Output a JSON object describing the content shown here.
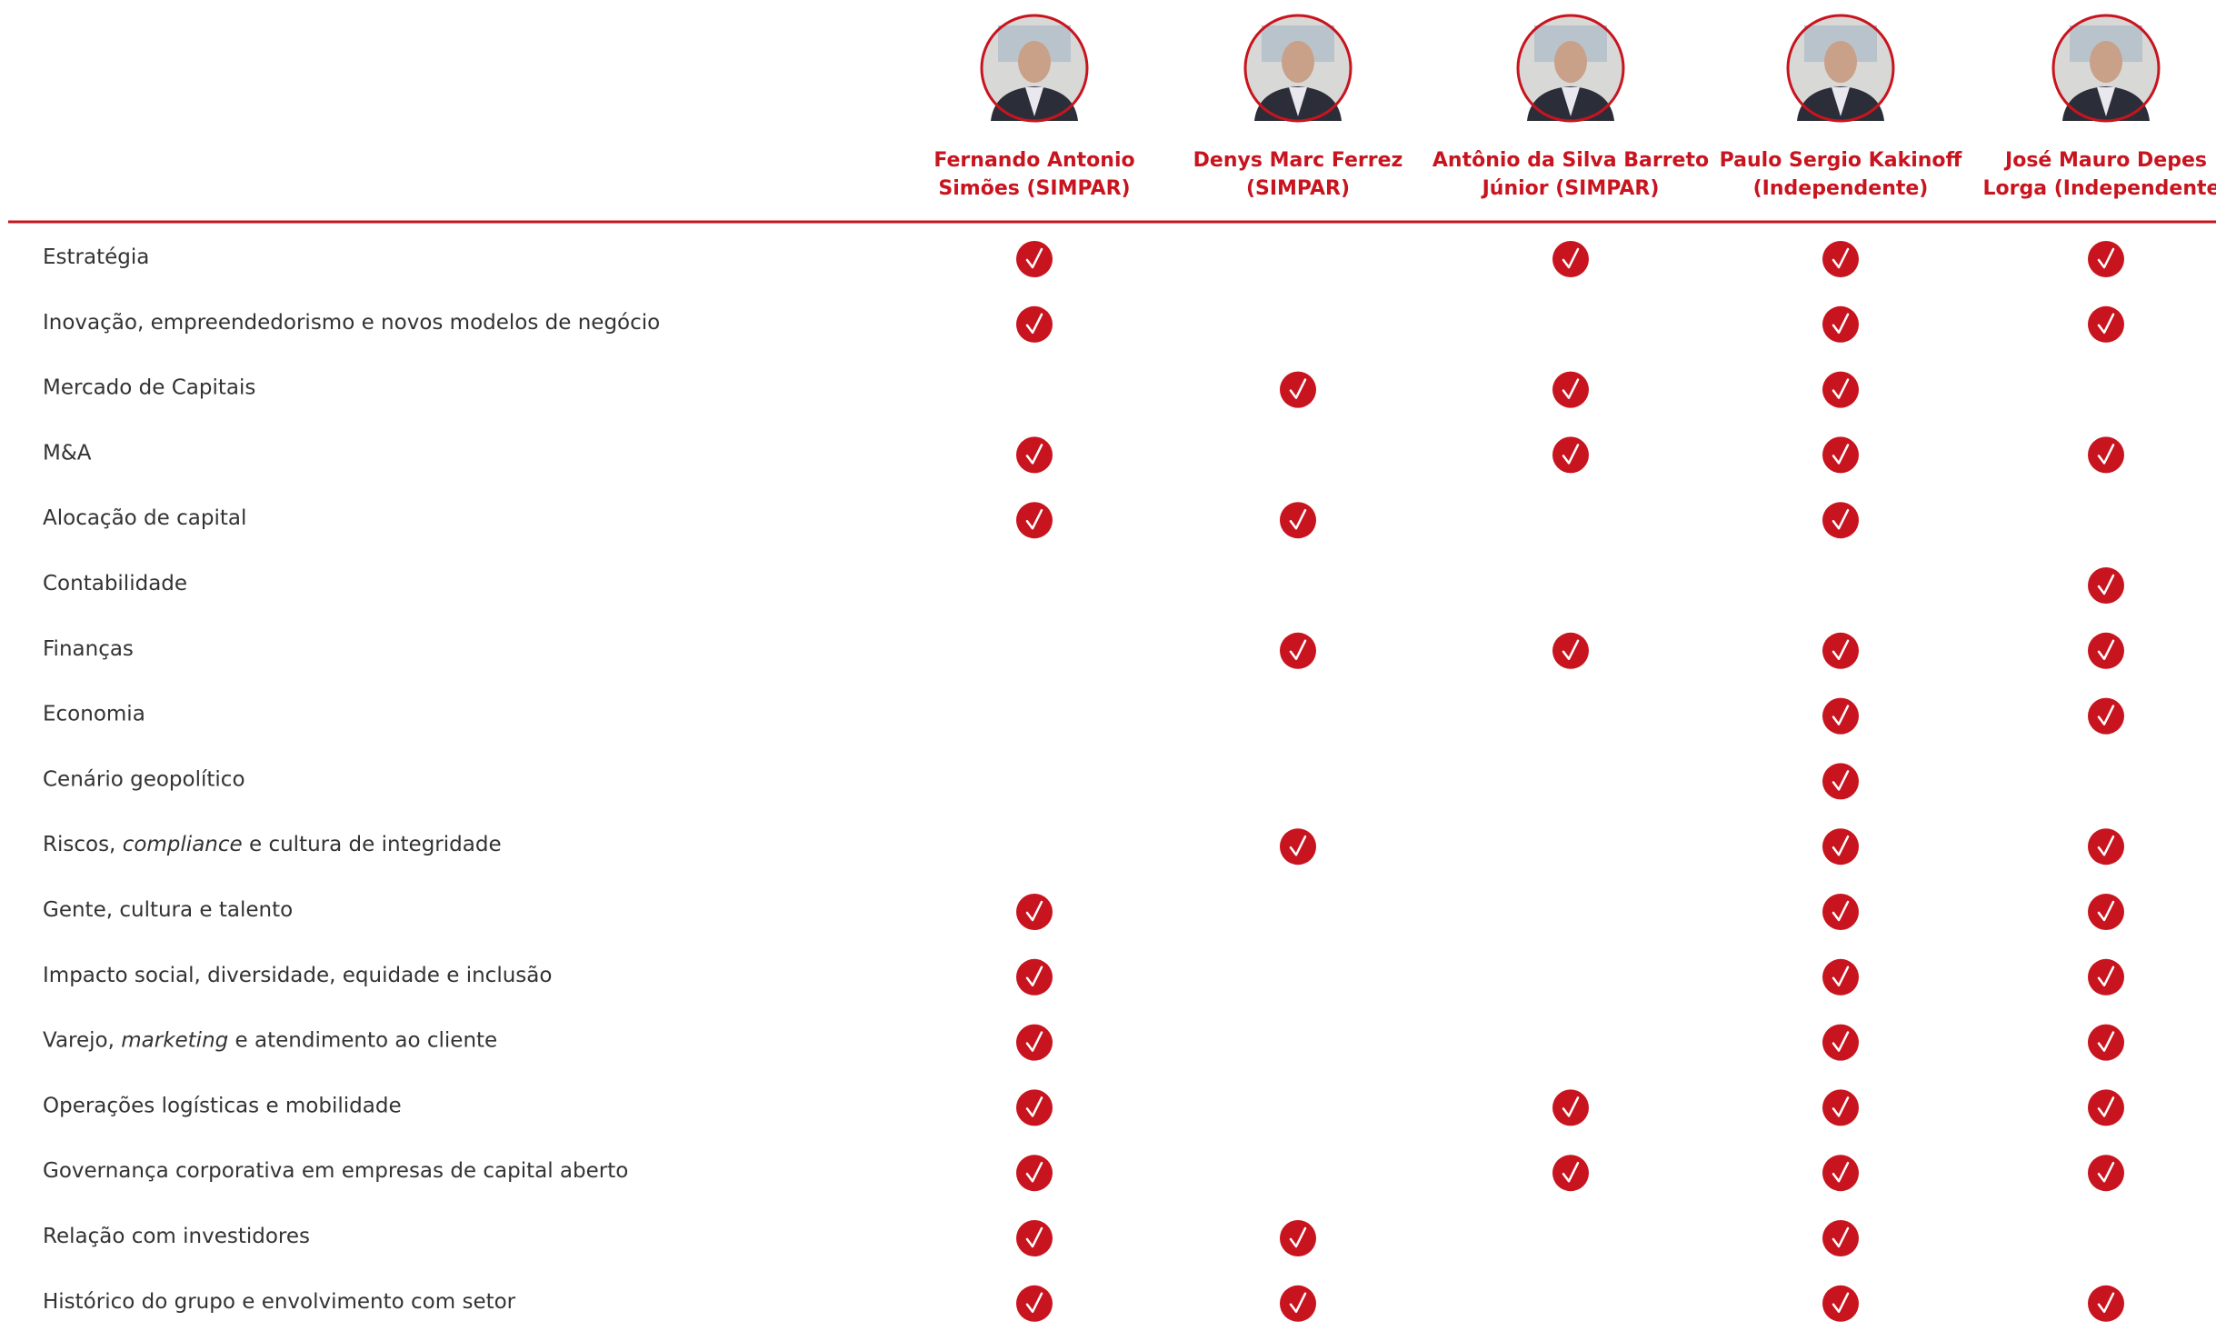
{
  "table": {
    "columns": [
      {
        "name": [
          "Fernando Antonio",
          "Simões (SIMPAR)"
        ]
      },
      {
        "name": [
          "Denys Marc Ferrez",
          "(SIMPAR)"
        ]
      },
      {
        "name": [
          "Antônio da Silva Barreto",
          "Júnior (SIMPAR)"
        ]
      },
      {
        "name": [
          "Paulo Sergio Kakinoff",
          "(Independente)"
        ]
      },
      {
        "name": [
          "José Mauro Depes",
          "Lorga (Independente)"
        ]
      }
    ],
    "rows": [
      {
        "label": [
          {
            "text": "Estratégia"
          }
        ],
        "checks": [
          true,
          false,
          true,
          true,
          true
        ]
      },
      {
        "label": [
          {
            "text": "Inovação, empreendedorismo e novos modelos de negócio"
          }
        ],
        "checks": [
          true,
          false,
          false,
          true,
          true
        ]
      },
      {
        "label": [
          {
            "text": "Mercado de Capitais"
          }
        ],
        "checks": [
          false,
          true,
          true,
          true,
          false
        ]
      },
      {
        "label": [
          {
            "text": "M&A"
          }
        ],
        "checks": [
          true,
          false,
          true,
          true,
          true
        ]
      },
      {
        "label": [
          {
            "text": "Alocação de capital"
          }
        ],
        "checks": [
          true,
          true,
          false,
          true,
          false
        ]
      },
      {
        "label": [
          {
            "text": "Contabilidade"
          }
        ],
        "checks": [
          false,
          false,
          false,
          false,
          true
        ]
      },
      {
        "label": [
          {
            "text": "Finanças"
          }
        ],
        "checks": [
          false,
          true,
          true,
          true,
          true
        ]
      },
      {
        "label": [
          {
            "text": "Economia"
          }
        ],
        "checks": [
          false,
          false,
          false,
          true,
          true
        ]
      },
      {
        "label": [
          {
            "text": "Cenário geopolítico"
          }
        ],
        "checks": [
          false,
          false,
          false,
          true,
          false
        ]
      },
      {
        "label": [
          {
            "text": "Riscos, "
          },
          {
            "text": "compliance",
            "italic": true
          },
          {
            "text": " e cultura de integridade"
          }
        ],
        "checks": [
          false,
          true,
          false,
          true,
          true
        ]
      },
      {
        "label": [
          {
            "text": "Gente, cultura e talento"
          }
        ],
        "checks": [
          true,
          false,
          false,
          true,
          true
        ]
      },
      {
        "label": [
          {
            "text": "Impacto social, diversidade, equidade e inclusão"
          }
        ],
        "checks": [
          true,
          false,
          false,
          true,
          true
        ]
      },
      {
        "label": [
          {
            "text": "Varejo, "
          },
          {
            "text": "marketing",
            "italic": true
          },
          {
            "text": " e atendimento ao cliente"
          }
        ],
        "checks": [
          true,
          false,
          false,
          true,
          true
        ]
      },
      {
        "label": [
          {
            "text": "Operações logísticas e mobilidade"
          }
        ],
        "checks": [
          true,
          false,
          true,
          true,
          true
        ]
      },
      {
        "label": [
          {
            "text": "Governança corporativa em empresas de capital aberto"
          }
        ],
        "checks": [
          true,
          false,
          true,
          true,
          true
        ]
      },
      {
        "label": [
          {
            "text": "Relação com investidores"
          }
        ],
        "checks": [
          true,
          true,
          false,
          true,
          false
        ]
      },
      {
        "label": [
          {
            "text": "Histórico do grupo e envolvimento com setor"
          }
        ],
        "checks": [
          true,
          true,
          false,
          true,
          true
        ]
      }
    ]
  }
}
